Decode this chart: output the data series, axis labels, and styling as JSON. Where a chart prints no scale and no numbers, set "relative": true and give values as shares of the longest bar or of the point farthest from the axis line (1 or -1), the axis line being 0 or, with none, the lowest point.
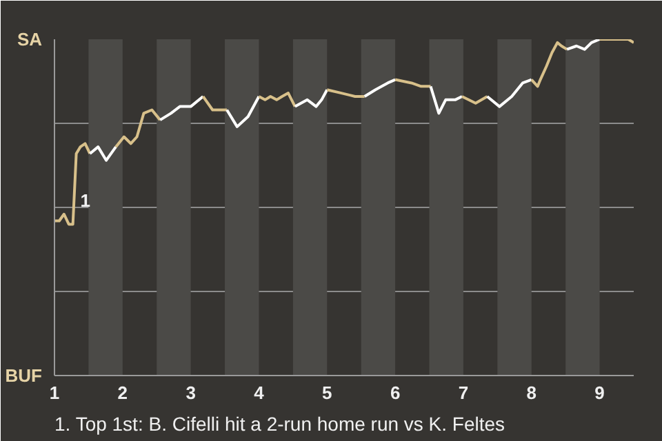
{
  "chart_data": {
    "type": "line",
    "relative": true,
    "series": [
      {
        "color": "#d8c08a",
        "x": [
          1.0,
          1.07,
          1.14,
          1.21,
          1.27,
          1.32,
          1.38,
          1.45,
          1.52
        ],
        "values": [
          0.46,
          0.46,
          0.48,
          0.45,
          0.45,
          0.66,
          0.68,
          0.69,
          0.66
        ]
      },
      {
        "color": "#ffffff",
        "x": [
          1.52,
          1.64,
          1.76,
          1.9
        ],
        "values": [
          0.66,
          0.68,
          0.64,
          0.68
        ]
      },
      {
        "color": "#d8c08a",
        "x": [
          1.9,
          2.02,
          2.12,
          2.21,
          2.31,
          2.43,
          2.55
        ],
        "values": [
          0.68,
          0.71,
          0.69,
          0.71,
          0.78,
          0.79,
          0.76
        ]
      },
      {
        "color": "#ffffff",
        "x": [
          2.55,
          2.71,
          2.84,
          3.0,
          3.18
        ],
        "values": [
          0.76,
          0.78,
          0.8,
          0.8,
          0.83
        ]
      },
      {
        "color": "#d8c08a",
        "x": [
          3.18,
          3.32,
          3.53
        ],
        "values": [
          0.83,
          0.79,
          0.79
        ]
      },
      {
        "color": "#ffffff",
        "x": [
          3.53,
          3.68,
          3.84,
          4.0
        ],
        "values": [
          0.79,
          0.74,
          0.77,
          0.83
        ]
      },
      {
        "color": "#d8c08a",
        "x": [
          4.0,
          4.09,
          4.17,
          4.26,
          4.34,
          4.43,
          4.53
        ],
        "values": [
          0.83,
          0.82,
          0.83,
          0.82,
          0.83,
          0.84,
          0.8
        ]
      },
      {
        "color": "#ffffff",
        "x": [
          4.53,
          4.71,
          4.84,
          4.92,
          5.0
        ],
        "values": [
          0.8,
          0.82,
          0.8,
          0.82,
          0.85
        ]
      },
      {
        "color": "#d8c08a",
        "x": [
          5.0,
          5.21,
          5.41,
          5.55
        ],
        "values": [
          0.85,
          0.84,
          0.83,
          0.83
        ]
      },
      {
        "color": "#ffffff",
        "x": [
          5.55,
          5.71,
          5.89,
          6.0
        ],
        "values": [
          0.83,
          0.85,
          0.87,
          0.88
        ]
      },
      {
        "color": "#d8c08a",
        "x": [
          6.0,
          6.24,
          6.38,
          6.52
        ],
        "values": [
          0.88,
          0.87,
          0.86,
          0.86
        ]
      },
      {
        "color": "#ffffff",
        "x": [
          6.52,
          6.64,
          6.74,
          6.88,
          6.98
        ],
        "values": [
          0.86,
          0.78,
          0.82,
          0.82,
          0.83
        ]
      },
      {
        "color": "#d8c08a",
        "x": [
          6.98,
          7.18,
          7.35
        ],
        "values": [
          0.83,
          0.81,
          0.83
        ]
      },
      {
        "color": "#ffffff",
        "x": [
          7.35,
          7.53,
          7.71,
          7.87,
          8.0
        ],
        "values": [
          0.83,
          0.8,
          0.83,
          0.87,
          0.88
        ]
      },
      {
        "color": "#d8c08a",
        "x": [
          8.0,
          8.09,
          8.13,
          8.22,
          8.3,
          8.38,
          8.44,
          8.52
        ],
        "values": [
          0.88,
          0.86,
          0.88,
          0.92,
          0.96,
          0.99,
          0.98,
          0.97
        ]
      },
      {
        "color": "#ffffff",
        "x": [
          8.52,
          8.66,
          8.78,
          8.88,
          9.0
        ],
        "values": [
          0.97,
          0.98,
          0.97,
          0.99,
          1
        ]
      },
      {
        "color": "#d8c08a",
        "x": [
          9.0,
          9.24,
          9.42,
          9.5
        ],
        "values": [
          1,
          1,
          1,
          0.99
        ]
      }
    ],
    "xlim": [
      1,
      9.5
    ],
    "xticks": [
      1,
      2,
      3,
      4,
      5,
      6,
      7,
      8,
      9
    ],
    "grid": "y",
    "bands": [
      {
        "axis": "x",
        "from": 1.5,
        "to": 2,
        "color": "#4b4a47"
      },
      {
        "axis": "x",
        "from": 2.5,
        "to": 3,
        "color": "#4b4a47"
      },
      {
        "axis": "x",
        "from": 3.5,
        "to": 4,
        "color": "#4b4a47"
      },
      {
        "axis": "x",
        "from": 4.5,
        "to": 5,
        "color": "#4b4a47"
      },
      {
        "axis": "x",
        "from": 5.5,
        "to": 6,
        "color": "#4b4a47"
      },
      {
        "axis": "x",
        "from": 6.5,
        "to": 7,
        "color": "#4b4a47"
      },
      {
        "axis": "x",
        "from": 7.5,
        "to": 8,
        "color": "#4b4a47"
      },
      {
        "axis": "x",
        "from": 8.5,
        "to": 9,
        "color": "#4b4a47"
      }
    ],
    "annotations": [
      "SA",
      "BUF",
      {
        "text": "1",
        "x": 1.32,
        "y": 0.52
      },
      "1. Top 1st: B. Cifelli hit a 2-run home run vs K. Feltes"
    ]
  }
}
